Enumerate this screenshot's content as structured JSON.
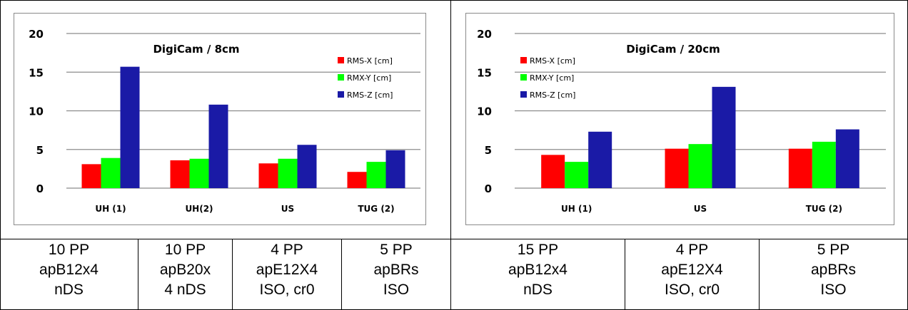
{
  "chart_data": [
    {
      "type": "bar",
      "title": "DigiCam / 8cm",
      "categories": [
        "UH (1)",
        "UH(2)",
        "US",
        "TUG (2)"
      ],
      "series": [
        {
          "name": "RMS-X [cm]",
          "color": "#ff0000",
          "values": [
            3.1,
            3.6,
            3.2,
            2.1
          ]
        },
        {
          "name": "RMX-Y [cm]",
          "color": "#00ff00",
          "values": [
            3.9,
            3.8,
            3.8,
            3.4
          ]
        },
        {
          "name": "RMS-Z [cm]",
          "color": "#1a1aa6",
          "values": [
            15.7,
            10.8,
            5.6,
            4.9
          ]
        }
      ],
      "yticks": [
        "0",
        "5",
        "10",
        "15",
        "20"
      ],
      "ylim": [
        0,
        20
      ],
      "legend_position": "right",
      "grid": true
    },
    {
      "type": "bar",
      "title": "DigiCam / 20cm",
      "categories": [
        "UH (1)",
        "US",
        "TUG (2)"
      ],
      "series": [
        {
          "name": "RMS-X [cm]",
          "color": "#ff0000",
          "values": [
            4.3,
            5.1,
            5.1
          ]
        },
        {
          "name": "RMX-Y [cm]",
          "color": "#00ff00",
          "values": [
            3.4,
            5.7,
            6.0
          ]
        },
        {
          "name": "RMS-Z [cm]",
          "color": "#1a1aa6",
          "values": [
            7.3,
            13.1,
            7.6
          ]
        }
      ],
      "yticks": [
        "0",
        "5",
        "10",
        "15",
        "20"
      ],
      "ylim": [
        0,
        20
      ],
      "legend_position": "left",
      "grid": true
    }
  ],
  "table": {
    "cells": [
      [
        "10 PP",
        "apB12x4",
        "nDS"
      ],
      [
        "10 PP",
        "apB20x",
        "4 nDS"
      ],
      [
        "4 PP",
        "apE12X4",
        "ISO, cr0"
      ],
      [
        "5 PP",
        "apBRs",
        "ISO"
      ],
      [
        "15 PP",
        "apB12x4",
        "nDS"
      ],
      [
        "4 PP",
        "apE12X4",
        "ISO, cr0"
      ],
      [
        "5 PP",
        "apBRs",
        "ISO"
      ]
    ]
  }
}
